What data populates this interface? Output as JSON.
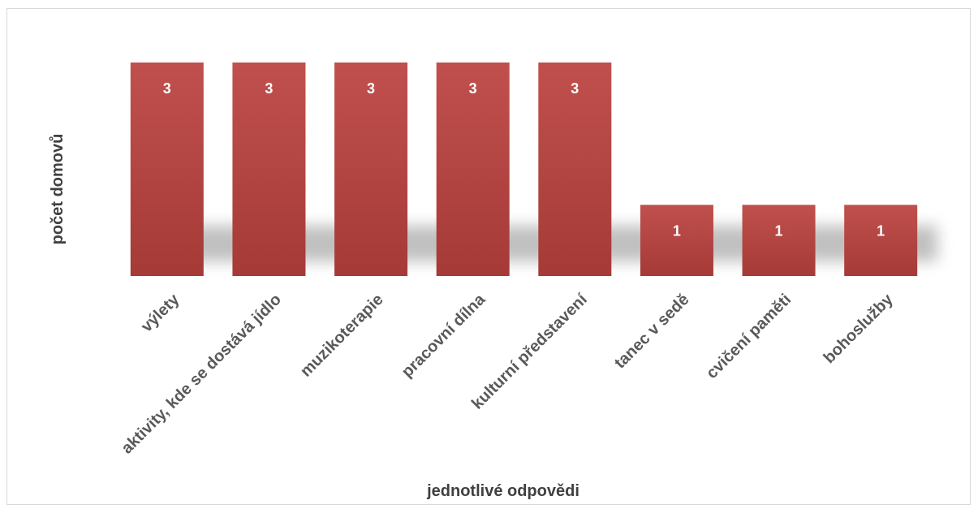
{
  "chart_data": {
    "type": "bar",
    "categories": [
      "výlety",
      "aktivity, kde se dostává jídlo",
      "muzikoterapie",
      "pracovní dílna",
      "kulturní představení",
      "tanec v sedě",
      "cvičení paměti",
      "bohoslužby"
    ],
    "values": [
      3,
      3,
      3,
      3,
      3,
      1,
      1,
      1
    ],
    "title": "",
    "xlabel": "jednotlivé odpovědi",
    "ylabel": "počet domovů",
    "ylim": [
      0,
      3
    ],
    "grid": false,
    "legend": "none",
    "data_labels": true,
    "colors": {
      "bar_top": "#c0504d",
      "bar_bottom": "#a53a37",
      "label": "#ffffff"
    }
  }
}
